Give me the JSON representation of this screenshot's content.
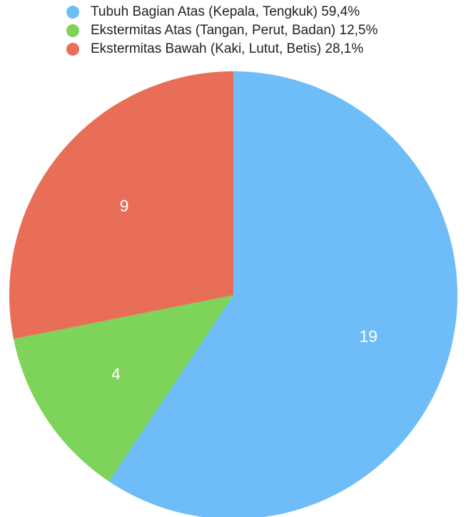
{
  "chart_data": {
    "type": "pie",
    "start_angle": "12 o'clock",
    "direction": "clockwise",
    "legend_position": "top",
    "slices": [
      {
        "name": "Tubuh Bagian Atas (Kepala, Tengkuk) 59,4%",
        "value": 19,
        "label": "19",
        "color": "#6FBDF8"
      },
      {
        "name": "Ekstermitas Atas (Tangan, Perut, Badan) 12,5%",
        "value": 4,
        "label": "4",
        "color": "#7ED35A"
      },
      {
        "name": "Ekstermitas Bawah (Kaki, Lutut, Betis) 28,1%",
        "value": 9,
        "label": "9",
        "color": "#E96E57"
      }
    ]
  }
}
